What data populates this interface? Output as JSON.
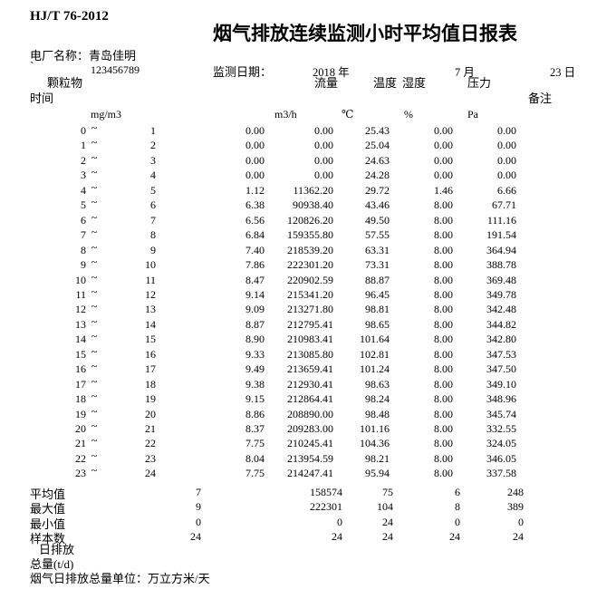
{
  "page": {
    "background": "#ffffff",
    "text_color": "#000000"
  },
  "header": {
    "standard_code": "HJ/T 76-2012",
    "title": "烟气排放连续监测小时平均值日报表",
    "plant_name_line": "电厂名称：青岛佳明",
    "backtick": "`",
    "plant_code": "123456789",
    "date_label": "监测日期：",
    "date_year": "2018 年",
    "date_month": "7 月",
    "date_day": "23 日"
  },
  "table": {
    "time_label": "时间",
    "remark_label": "备注",
    "tilde": "~",
    "columns": {
      "pm": {
        "label": "颗粒物",
        "unit": "mg/m3"
      },
      "flow": {
        "label": "流量",
        "unit": "m3/h"
      },
      "temp": {
        "label": "温度",
        "unit": "℃"
      },
      "humidity": {
        "label": "湿度",
        "unit": "%"
      },
      "pressure": {
        "label": "压力",
        "unit": "Pa"
      }
    },
    "rows": [
      {
        "from": "0",
        "to": "1",
        "pm": "0.00",
        "flow": "0.00",
        "temp": "25.43",
        "humidity": "0.00",
        "pressure": "0.00"
      },
      {
        "from": "1",
        "to": "2",
        "pm": "0.00",
        "flow": "0.00",
        "temp": "25.04",
        "humidity": "0.00",
        "pressure": "0.00"
      },
      {
        "from": "2",
        "to": "3",
        "pm": "0.00",
        "flow": "0.00",
        "temp": "24.63",
        "humidity": "0.00",
        "pressure": "0.00"
      },
      {
        "from": "3",
        "to": "4",
        "pm": "0.00",
        "flow": "0.00",
        "temp": "24.28",
        "humidity": "0.00",
        "pressure": "0.00"
      },
      {
        "from": "4",
        "to": "5",
        "pm": "1.12",
        "flow": "11362.20",
        "temp": "29.72",
        "humidity": "1.46",
        "pressure": "6.66"
      },
      {
        "from": "5",
        "to": "6",
        "pm": "6.38",
        "flow": "90938.40",
        "temp": "43.46",
        "humidity": "8.00",
        "pressure": "67.71"
      },
      {
        "from": "6",
        "to": "7",
        "pm": "6.56",
        "flow": "120826.20",
        "temp": "49.50",
        "humidity": "8.00",
        "pressure": "111.16"
      },
      {
        "from": "7",
        "to": "8",
        "pm": "6.84",
        "flow": "159355.80",
        "temp": "57.55",
        "humidity": "8.00",
        "pressure": "191.54"
      },
      {
        "from": "8",
        "to": "9",
        "pm": "7.40",
        "flow": "218539.20",
        "temp": "63.31",
        "humidity": "8.00",
        "pressure": "364.94"
      },
      {
        "from": "9",
        "to": "10",
        "pm": "7.86",
        "flow": "222301.20",
        "temp": "73.31",
        "humidity": "8.00",
        "pressure": "388.78"
      },
      {
        "from": "10",
        "to": "11",
        "pm": "8.47",
        "flow": "220902.59",
        "temp": "88.87",
        "humidity": "8.00",
        "pressure": "369.48"
      },
      {
        "from": "11",
        "to": "12",
        "pm": "9.14",
        "flow": "215341.20",
        "temp": "96.45",
        "humidity": "8.00",
        "pressure": "349.78"
      },
      {
        "from": "12",
        "to": "13",
        "pm": "9.09",
        "flow": "213271.80",
        "temp": "98.81",
        "humidity": "8.00",
        "pressure": "342.48"
      },
      {
        "from": "13",
        "to": "14",
        "pm": "8.87",
        "flow": "212795.41",
        "temp": "98.65",
        "humidity": "8.00",
        "pressure": "344.82"
      },
      {
        "from": "14",
        "to": "15",
        "pm": "8.90",
        "flow": "210983.41",
        "temp": "101.64",
        "humidity": "8.00",
        "pressure": "342.80"
      },
      {
        "from": "15",
        "to": "16",
        "pm": "9.33",
        "flow": "213085.80",
        "temp": "102.81",
        "humidity": "8.00",
        "pressure": "347.53"
      },
      {
        "from": "16",
        "to": "17",
        "pm": "9.49",
        "flow": "213659.41",
        "temp": "101.24",
        "humidity": "8.00",
        "pressure": "347.50"
      },
      {
        "from": "17",
        "to": "18",
        "pm": "9.38",
        "flow": "212930.41",
        "temp": "98.63",
        "humidity": "8.00",
        "pressure": "349.10"
      },
      {
        "from": "18",
        "to": "19",
        "pm": "9.15",
        "flow": "212864.41",
        "temp": "98.24",
        "humidity": "8.00",
        "pressure": "348.96"
      },
      {
        "from": "19",
        "to": "20",
        "pm": "8.86",
        "flow": "208890.00",
        "temp": "98.48",
        "humidity": "8.00",
        "pressure": "345.74"
      },
      {
        "from": "20",
        "to": "21",
        "pm": "8.37",
        "flow": "209283.00",
        "temp": "101.16",
        "humidity": "8.00",
        "pressure": "332.55"
      },
      {
        "from": "21",
        "to": "22",
        "pm": "7.75",
        "flow": "210245.41",
        "temp": "104.36",
        "humidity": "8.00",
        "pressure": "324.05"
      },
      {
        "from": "22",
        "to": "23",
        "pm": "8.04",
        "flow": "213954.59",
        "temp": "98.21",
        "humidity": "8.00",
        "pressure": "346.05"
      },
      {
        "from": "23",
        "to": "24",
        "pm": "7.75",
        "flow": "214247.41",
        "temp": "95.94",
        "humidity": "8.00",
        "pressure": "337.58"
      }
    ]
  },
  "summary": {
    "rows": [
      {
        "label": "平均值",
        "values": [
          "7",
          "158574",
          "75",
          "6",
          "248"
        ]
      },
      {
        "label": "最大值",
        "values": [
          "9",
          "222301",
          "104",
          "8",
          "389"
        ]
      },
      {
        "label": "最小值",
        "values": [
          "0",
          "0",
          "24",
          "0",
          "0"
        ]
      },
      {
        "label": "样本数",
        "values": [
          "24",
          "24",
          "24",
          "24",
          "24"
        ]
      }
    ]
  },
  "footer": {
    "daily_emission_label": "日排放",
    "total_label": "总量(t/d)",
    "unit_note": "烟气日排放总量单位：万立方米/天"
  }
}
